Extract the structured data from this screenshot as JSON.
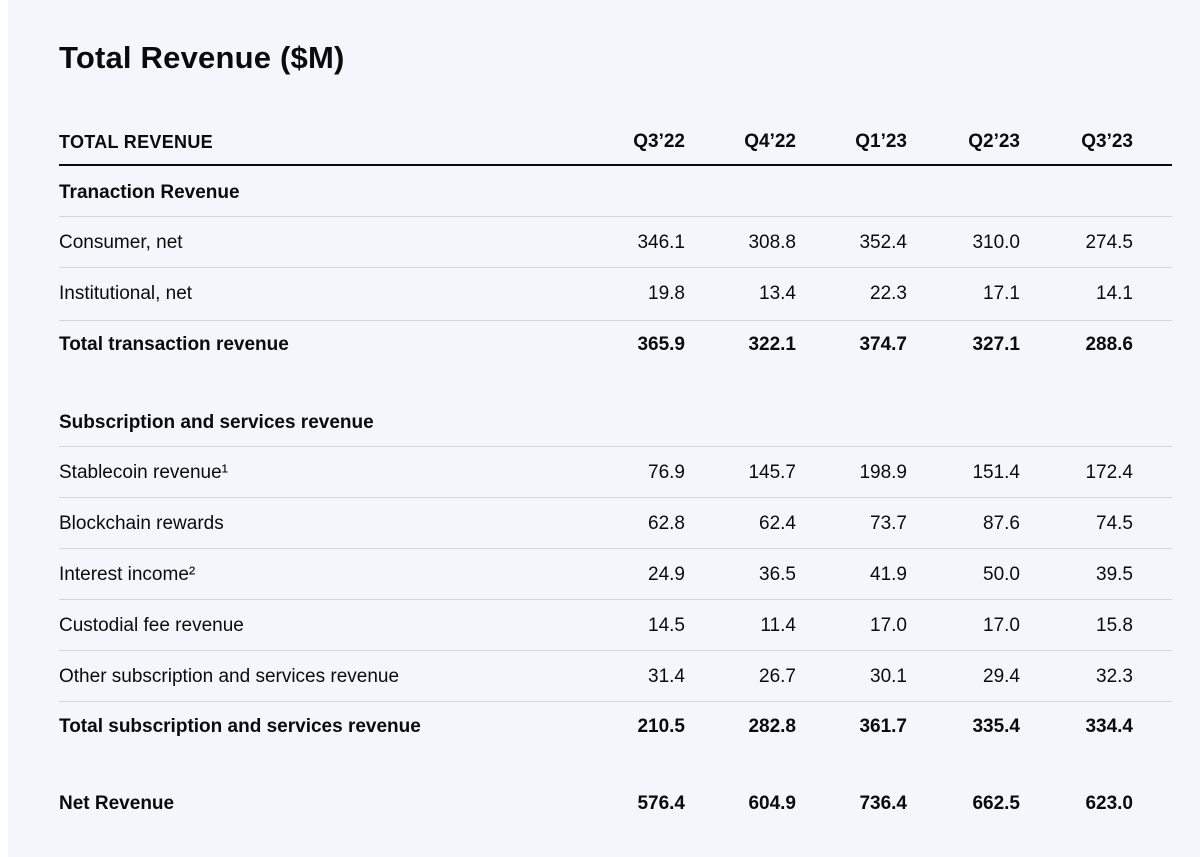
{
  "title": "Total Revenue ($M)",
  "header": {
    "label": "TOTAL REVENUE",
    "columns": [
      "Q3’22",
      "Q4’22",
      "Q1’23",
      "Q2’23",
      "Q3’23"
    ]
  },
  "sections": {
    "transaction": {
      "heading": "Tranaction Revenue",
      "rows": [
        {
          "label": "Consumer, net",
          "values": [
            "346.1",
            "308.8",
            "352.4",
            "310.0",
            "274.5"
          ]
        },
        {
          "label": "Institutional, net",
          "values": [
            "19.8",
            "13.4",
            "22.3",
            "17.1",
            "14.1"
          ]
        }
      ],
      "total": {
        "label": "Total transaction revenue",
        "values": [
          "365.9",
          "322.1",
          "374.7",
          "327.1",
          "288.6"
        ]
      }
    },
    "subscription": {
      "heading": "Subscription and services revenue",
      "rows": [
        {
          "label": "Stablecoin revenue¹",
          "values": [
            "76.9",
            "145.7",
            "198.9",
            "151.4",
            "172.4"
          ]
        },
        {
          "label": "Blockchain rewards",
          "values": [
            "62.8",
            "62.4",
            "73.7",
            "87.6",
            "74.5"
          ]
        },
        {
          "label": "Interest income²",
          "values": [
            "24.9",
            "36.5",
            "41.9",
            "50.0",
            "39.5"
          ]
        },
        {
          "label": "Custodial fee revenue",
          "values": [
            "14.5",
            "11.4",
            "17.0",
            "17.0",
            "15.8"
          ]
        },
        {
          "label": "Other subscription and services revenue",
          "values": [
            "31.4",
            "26.7",
            "30.1",
            "29.4",
            "32.3"
          ]
        }
      ],
      "total": {
        "label": "Total subscription and services revenue",
        "values": [
          "210.5",
          "282.8",
          "361.7",
          "335.4",
          "334.4"
        ]
      }
    }
  },
  "net": {
    "label": "Net Revenue",
    "values": [
      "576.4",
      "604.9",
      "736.4",
      "662.5",
      "623.0"
    ]
  }
}
